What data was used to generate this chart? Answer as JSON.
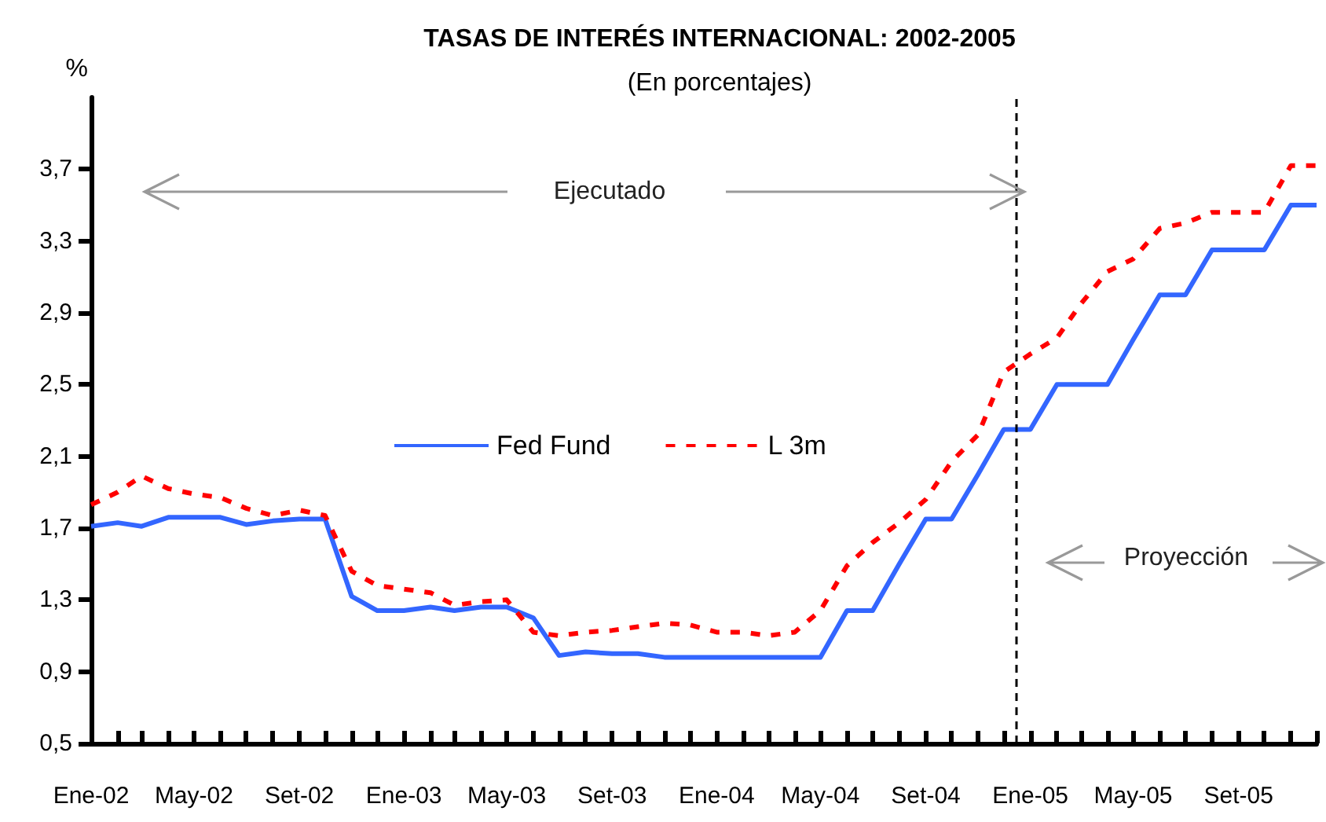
{
  "chart_data": {
    "type": "line",
    "title": "TASAS DE INTERÉS INTERNACIONAL: 2002-2005",
    "subtitle": "(En porcentajes)",
    "ylabel": "%",
    "annotations": [
      "Ejecutado",
      "Proyección"
    ],
    "x": [
      "2002-01",
      "2002-02",
      "2002-03",
      "2002-04",
      "2002-05",
      "2002-06",
      "2002-07",
      "2002-08",
      "2002-09",
      "2002-10",
      "2002-11",
      "2002-12",
      "2003-01",
      "2003-02",
      "2003-03",
      "2003-04",
      "2003-05",
      "2003-06",
      "2003-07",
      "2003-08",
      "2003-09",
      "2003-10",
      "2003-11",
      "2003-12",
      "2004-01",
      "2004-02",
      "2004-03",
      "2004-04",
      "2004-05",
      "2004-06",
      "2004-07",
      "2004-08",
      "2004-09",
      "2004-10",
      "2004-11",
      "2004-12",
      "2005-01",
      "2005-02",
      "2005-03",
      "2005-04",
      "2005-05",
      "2005-06",
      "2005-07",
      "2005-08",
      "2005-09",
      "2005-10",
      "2005-11",
      "2005-12"
    ],
    "series": [
      {
        "name": "Fed Fund",
        "color": "#3366ff",
        "line_style": "solid",
        "values": [
          1.71,
          1.73,
          1.71,
          1.76,
          1.76,
          1.76,
          1.72,
          1.74,
          1.75,
          1.75,
          1.32,
          1.24,
          1.24,
          1.26,
          1.24,
          1.26,
          1.26,
          1.2,
          0.99,
          1.01,
          1.0,
          1.0,
          0.98,
          0.98,
          0.98,
          0.98,
          0.98,
          0.98,
          0.98,
          1.24,
          1.24,
          1.5,
          1.75,
          1.75,
          2.0,
          2.25,
          2.25,
          2.5,
          2.5,
          2.5,
          2.75,
          3.0,
          3.0,
          3.25,
          3.25,
          3.25,
          3.5,
          3.5
        ]
      },
      {
        "name": "L 3m",
        "color": "#ff0000",
        "line_style": "dashed",
        "values": [
          1.83,
          1.9,
          1.99,
          1.92,
          1.89,
          1.87,
          1.81,
          1.77,
          1.8,
          1.77,
          1.46,
          1.38,
          1.36,
          1.34,
          1.27,
          1.29,
          1.3,
          1.12,
          1.1,
          1.12,
          1.13,
          1.15,
          1.17,
          1.16,
          1.12,
          1.12,
          1.1,
          1.12,
          1.24,
          1.49,
          1.62,
          1.73,
          1.86,
          2.07,
          2.22,
          2.57,
          2.67,
          2.76,
          2.95,
          3.13,
          3.2,
          3.37,
          3.4,
          3.46,
          3.46,
          3.46,
          3.72,
          3.72
        ]
      }
    ],
    "xlim": [
      "2002-01",
      "2005-12"
    ],
    "xticks": [
      {
        "value": "2002-01",
        "label": "Ene-02"
      },
      {
        "value": "2002-02",
        "label": null
      },
      {
        "value": "2002-03",
        "label": null
      },
      {
        "value": "2002-04",
        "label": null
      },
      {
        "value": "2002-05",
        "label": "May-02"
      },
      {
        "value": "2002-06",
        "label": null
      },
      {
        "value": "2002-07",
        "label": null
      },
      {
        "value": "2002-08",
        "label": null
      },
      {
        "value": "2002-09",
        "label": "Set-02"
      },
      {
        "value": "2002-10",
        "label": null
      },
      {
        "value": "2002-11",
        "label": null
      },
      {
        "value": "2002-12",
        "label": null
      },
      {
        "value": "2003-01",
        "label": "Ene-03"
      },
      {
        "value": "2003-02",
        "label": null
      },
      {
        "value": "2003-03",
        "label": null
      },
      {
        "value": "2003-04",
        "label": null
      },
      {
        "value": "2003-05",
        "label": "May-03"
      },
      {
        "value": "2003-06",
        "label": null
      },
      {
        "value": "2003-07",
        "label": null
      },
      {
        "value": "2003-08",
        "label": null
      },
      {
        "value": "2003-09",
        "label": "Set-03"
      },
      {
        "value": "2003-10",
        "label": null
      },
      {
        "value": "2003-11",
        "label": null
      },
      {
        "value": "2003-12",
        "label": null
      },
      {
        "value": "2004-01",
        "label": "Ene-04"
      },
      {
        "value": "2004-02",
        "label": null
      },
      {
        "value": "2004-03",
        "label": null
      },
      {
        "value": "2004-04",
        "label": null
      },
      {
        "value": "2004-05",
        "label": "May-04"
      },
      {
        "value": "2004-06",
        "label": null
      },
      {
        "value": "2004-07",
        "label": null
      },
      {
        "value": "2004-08",
        "label": null
      },
      {
        "value": "2004-09",
        "label": "Set-04"
      },
      {
        "value": "2004-10",
        "label": null
      },
      {
        "value": "2004-11",
        "label": null
      },
      {
        "value": "2004-12",
        "label": null
      },
      {
        "value": "2005-01",
        "label": "Ene-05"
      },
      {
        "value": "2005-02",
        "label": null
      },
      {
        "value": "2005-03",
        "label": null
      },
      {
        "value": "2005-04",
        "label": null
      },
      {
        "value": "2005-05",
        "label": "May-05"
      },
      {
        "value": "2005-06",
        "label": null
      },
      {
        "value": "2005-07",
        "label": null
      },
      {
        "value": "2005-08",
        "label": null
      },
      {
        "value": "2005-09",
        "label": "Set-05"
      },
      {
        "value": "2005-10",
        "label": null
      },
      {
        "value": "2005-11",
        "label": null
      },
      {
        "value": "2005-12",
        "label": null
      }
    ],
    "ylim": [
      0.5,
      4.1
    ],
    "yticks": [
      {
        "value": 0.5,
        "label": "0,5"
      },
      {
        "value": 0.9,
        "label": "0,9"
      },
      {
        "value": 1.3,
        "label": "1,3"
      },
      {
        "value": 1.7,
        "label": "1,7"
      },
      {
        "value": 2.1,
        "label": "2,1"
      },
      {
        "value": 2.5,
        "label": "2,5"
      },
      {
        "value": 2.9,
        "label": "2,9"
      },
      {
        "value": 3.3,
        "label": "3,3"
      },
      {
        "value": 3.7,
        "label": "3,7"
      }
    ],
    "ref_lines": [
      {
        "axis": "x",
        "value": "2004-12-16",
        "color": "#000000",
        "line_style": "dashed"
      }
    ],
    "legend": "center",
    "marker": "none"
  }
}
